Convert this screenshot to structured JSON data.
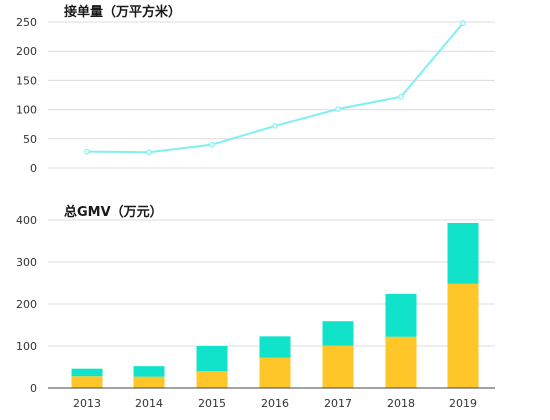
{
  "chart_data": [
    {
      "type": "line",
      "title": "接单量（万平方米）",
      "categories": [
        "2013",
        "2014",
        "2015",
        "2016",
        "2017",
        "2018",
        "2019"
      ],
      "values": [
        28,
        27,
        40,
        72,
        101,
        122,
        248
      ],
      "ylim": [
        0,
        250
      ],
      "yticks": [
        0,
        50,
        100,
        150,
        200,
        250
      ],
      "grid": true,
      "color": "#7ef0f3"
    },
    {
      "type": "bar",
      "stacked": true,
      "title": "总GMV（万元）",
      "categories": [
        "2013",
        "2014",
        "2015",
        "2016",
        "2017",
        "2018",
        "2019"
      ],
      "series": [
        {
          "values": [
            28,
            27,
            40,
            72,
            101,
            122,
            248
          ],
          "color": "#ffc629"
        },
        {
          "values": [
            18,
            25,
            60,
            51,
            58,
            102,
            145
          ],
          "color": "#10e3c9"
        }
      ],
      "ylim": [
        0,
        400
      ],
      "yticks": [
        0,
        100,
        200,
        300,
        400
      ],
      "grid": true
    }
  ]
}
